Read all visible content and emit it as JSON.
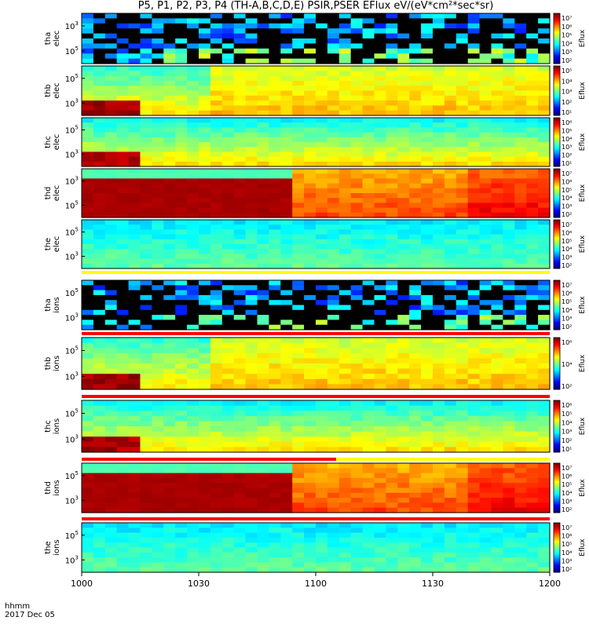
{
  "title": "P5, P1, P2, P3, P4 (TH-A,B,C,D,E) PSIR,PSER EFlux eV/(eV*cm²*sec*sr)",
  "footer": {
    "units": "hhmm",
    "date": "2017 Dec 05"
  },
  "chart_data": {
    "type": "heatmap",
    "x_ticks": [
      "1000",
      "1030",
      "1100",
      "1130",
      "1200"
    ],
    "xlim": [
      "10:00",
      "12:00"
    ],
    "panels": [
      {
        "name": "tha elec",
        "label": [
          "tha",
          "elec"
        ],
        "y_ticks": [
          {
            "base": "10",
            "exp": "3"
          },
          {
            "base": "10",
            "exp": "5"
          }
        ],
        "cbar_ticks": [
          "10⁷",
          "10⁶",
          "10⁵",
          "10⁴",
          "10³",
          "10²"
        ],
        "cbar_label": "Eflux",
        "bar": null,
        "intensity": "sparse"
      },
      {
        "name": "thb elec",
        "label": [
          "thb",
          "elec"
        ],
        "y_ticks": [
          {
            "base": "10",
            "exp": "5"
          },
          {
            "base": "10",
            "exp": "3"
          }
        ],
        "cbar_ticks": [
          "10⁵",
          "10⁴",
          "10³",
          "10²",
          "10¹"
        ],
        "cbar_label": "Eflux",
        "bar": null,
        "intensity": "high"
      },
      {
        "name": "thc elec",
        "label": [
          "thc",
          "elec"
        ],
        "y_ticks": [
          {
            "base": "10",
            "exp": "5"
          },
          {
            "base": "10",
            "exp": "3"
          }
        ],
        "cbar_ticks": [
          "10⁶",
          "10⁵",
          "10⁴",
          "10³",
          "10²",
          "10¹"
        ],
        "cbar_label": "Eflux",
        "bar": null,
        "intensity": "medium"
      },
      {
        "name": "thd elec",
        "label": [
          "thd",
          "elec"
        ],
        "y_ticks": [
          {
            "base": "10",
            "exp": "3"
          },
          {
            "base": "10",
            "exp": "5"
          }
        ],
        "cbar_ticks": [
          "10⁷",
          "10⁶",
          "10⁵",
          "10⁴",
          "10³",
          "10²"
        ],
        "cbar_label": "Eflux",
        "bar": null,
        "intensity": "veryhigh"
      },
      {
        "name": "the elec",
        "label": [
          "the",
          "elec"
        ],
        "y_ticks": [
          {
            "base": "10",
            "exp": "5"
          },
          {
            "base": "10",
            "exp": "3"
          }
        ],
        "cbar_ticks": [
          "10⁷",
          "10⁶",
          "10⁵",
          "10⁴",
          "10³",
          "10²"
        ],
        "cbar_label": "Eflux",
        "bar": "yellow",
        "intensity": "low"
      },
      {
        "name": "tha ions",
        "label": [
          "tha",
          "ions"
        ],
        "y_ticks": [
          {
            "base": "10",
            "exp": "5"
          },
          {
            "base": "10",
            "exp": "3"
          }
        ],
        "cbar_ticks": [
          "10⁷",
          "10⁶",
          "10⁵",
          "10⁴",
          "10³",
          "10²"
        ],
        "cbar_label": "Eflux",
        "bar": "red",
        "intensity": "sparse"
      },
      {
        "name": "thb ions",
        "label": [
          "thb",
          "ions"
        ],
        "y_ticks": [
          {
            "base": "10",
            "exp": "5"
          },
          {
            "base": "10",
            "exp": "3"
          }
        ],
        "cbar_ticks": [
          "10⁶",
          "10⁴",
          "10²"
        ],
        "cbar_label": "Eflux",
        "bar": "red",
        "intensity": "high"
      },
      {
        "name": "thc ions",
        "label": [
          "thc",
          "ions"
        ],
        "y_ticks": [
          {
            "base": "10",
            "exp": "5"
          },
          {
            "base": "10",
            "exp": "3"
          }
        ],
        "cbar_ticks": [
          "10⁶",
          "10⁵",
          "10⁴",
          "10³",
          "10²",
          "10¹"
        ],
        "cbar_label": "Eflux",
        "bar": "mixed",
        "intensity": "medium"
      },
      {
        "name": "thd ions",
        "label": [
          "thd",
          "ions"
        ],
        "y_ticks": [
          {
            "base": "10",
            "exp": "5"
          },
          {
            "base": "10",
            "exp": "3"
          }
        ],
        "cbar_ticks": [
          "10⁷",
          "10⁶",
          "10⁵",
          "10⁴",
          "10³",
          "10²"
        ],
        "cbar_label": "Eflux",
        "bar": "red",
        "intensity": "veryhigh"
      },
      {
        "name": "the ions",
        "label": [
          "the",
          "ions"
        ],
        "y_ticks": [
          {
            "base": "10",
            "exp": "5"
          },
          {
            "base": "10",
            "exp": "3"
          }
        ],
        "cbar_ticks": [
          "10⁷",
          "10⁶",
          "10⁵",
          "10⁴",
          "10³",
          "10²"
        ],
        "cbar_label": "Eflux",
        "bar": null,
        "intensity": "low"
      }
    ]
  }
}
